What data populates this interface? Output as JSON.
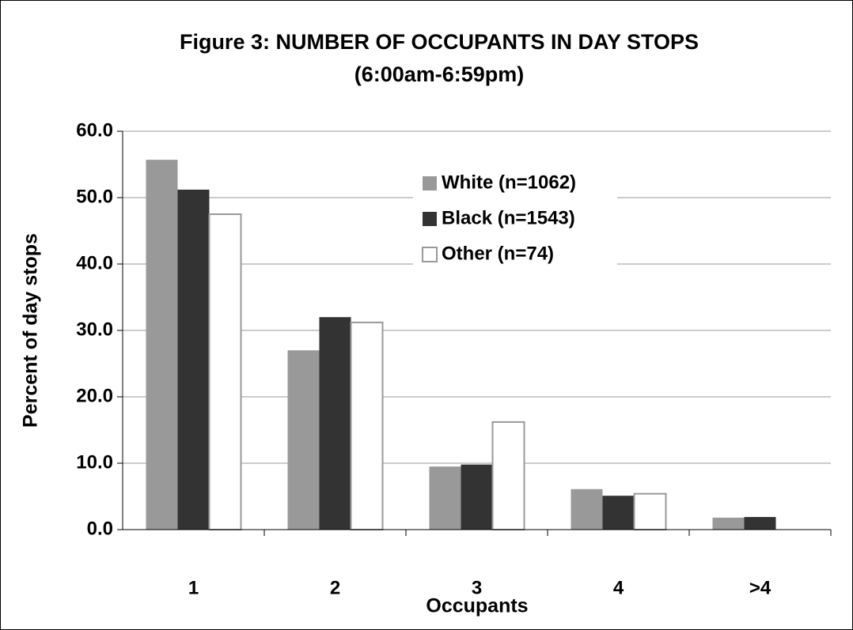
{
  "chart_data": {
    "type": "bar",
    "title": [
      "Figure 3: NUMBER OF OCCUPANTS IN DAY STOPS",
      "(6:00am-6:59pm)"
    ],
    "x_label": "Occupants",
    "y_label": "Percent of day stops",
    "categories": [
      "1",
      "2",
      "3",
      "4",
      ">4"
    ],
    "series": [
      {
        "name": "White (n=1062)",
        "color": "#999999",
        "values": [
          55.7,
          27.0,
          9.5,
          6.1,
          1.8
        ]
      },
      {
        "name": "Black (n=1543)",
        "color": "#333333",
        "values": [
          51.2,
          32.0,
          9.8,
          5.1,
          1.9
        ]
      },
      {
        "name": "Other (n=74)",
        "color": "#ffffff",
        "values": [
          47.5,
          31.2,
          16.2,
          5.4,
          0
        ]
      }
    ],
    "ylim": [
      0,
      60
    ],
    "yticks": [
      {
        "value": 0,
        "label": "0.0"
      },
      {
        "value": 10,
        "label": "10.0"
      },
      {
        "value": 20,
        "label": "20.0"
      },
      {
        "value": 30,
        "label": "30.0"
      },
      {
        "value": 40,
        "label": "40.0"
      },
      {
        "value": 50,
        "label": "50.0"
      },
      {
        "value": 60,
        "label": "60.0"
      }
    ],
    "grid": true
  }
}
